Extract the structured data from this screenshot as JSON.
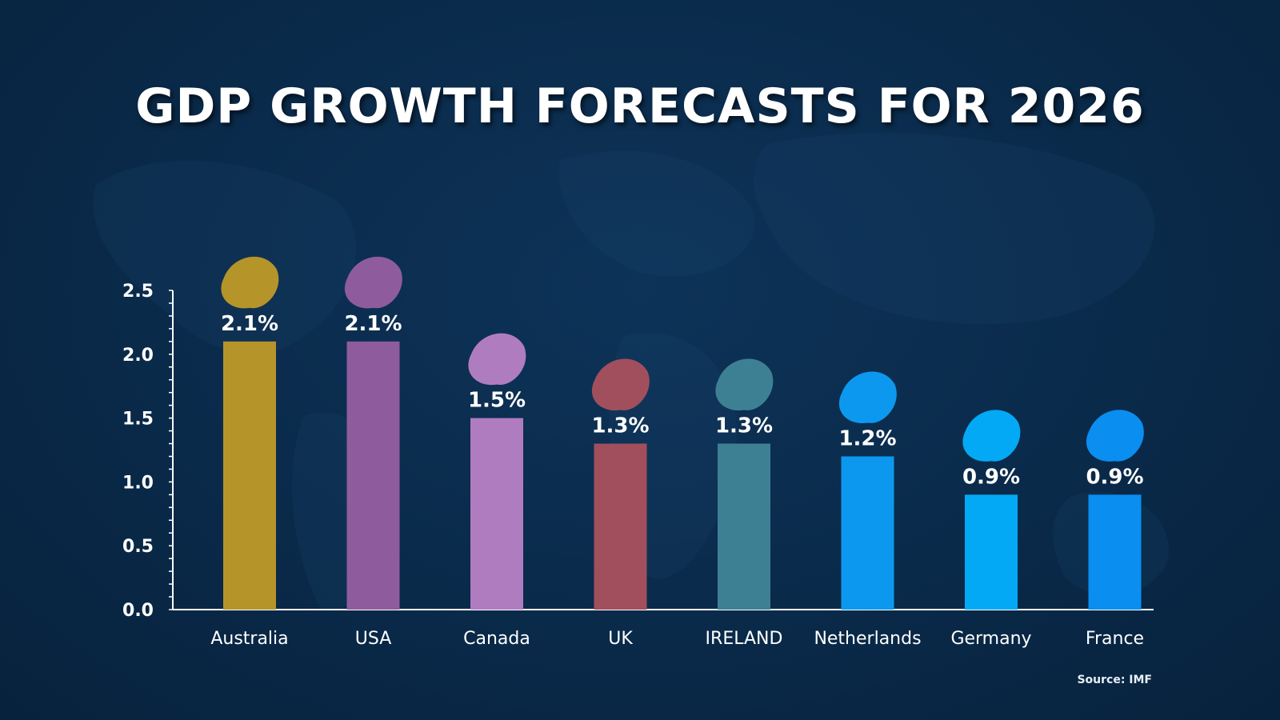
{
  "chart_data": {
    "type": "bar",
    "title": "GDP GROWTH FORECASTS FOR 2026",
    "xlabel": "",
    "ylabel": "",
    "ylim": [
      0,
      2.5
    ],
    "yticks": [
      0.0,
      0.5,
      1.0,
      1.5,
      2.0,
      2.5
    ],
    "ytick_labels": [
      "0.0",
      "0.5",
      "1.0",
      "1.5",
      "2.0",
      "2.5"
    ],
    "minor_tick_step": 0.1,
    "grid": false,
    "categories": [
      "Australia",
      "USA",
      "Canada",
      "UK",
      "IRELAND",
      "Netherlands",
      "Germany",
      "France"
    ],
    "values": [
      2.1,
      2.1,
      1.5,
      1.3,
      1.3,
      1.2,
      0.9,
      0.9
    ],
    "value_labels": [
      "2.1%",
      "2.1%",
      "1.5%",
      "1.3%",
      "1.3%",
      "1.2%",
      "0.9%",
      "0.9%"
    ],
    "colors": [
      "#b5942a",
      "#8e5c9c",
      "#b07cc0",
      "#a14f5c",
      "#3d8094",
      "#0d98f0",
      "#03a9f4",
      "#0a8ef0"
    ],
    "annotations": [
      "Country silhouette icon above each bar"
    ],
    "source": "Source: IMF"
  }
}
